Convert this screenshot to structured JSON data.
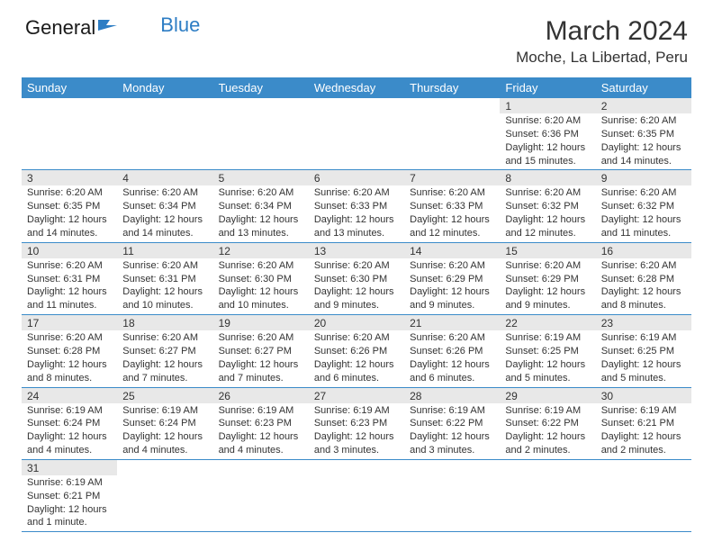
{
  "logo": {
    "text_general": "General",
    "text_blue": "Blue"
  },
  "title": "March 2024",
  "location": "Moche, La Libertad, Peru",
  "colors": {
    "header_bg": "#3b8bc9",
    "header_text": "#ffffff",
    "daynum_bg": "#e8e8e8",
    "border": "#3b8bc9",
    "text": "#333333",
    "logo_blue": "#2d7dc4"
  },
  "weekdays": [
    "Sunday",
    "Monday",
    "Tuesday",
    "Wednesday",
    "Thursday",
    "Friday",
    "Saturday"
  ],
  "weeks": [
    [
      null,
      null,
      null,
      null,
      null,
      {
        "n": "1",
        "sr": "Sunrise: 6:20 AM",
        "ss": "Sunset: 6:36 PM",
        "dl": "Daylight: 12 hours and 15 minutes."
      },
      {
        "n": "2",
        "sr": "Sunrise: 6:20 AM",
        "ss": "Sunset: 6:35 PM",
        "dl": "Daylight: 12 hours and 14 minutes."
      }
    ],
    [
      {
        "n": "3",
        "sr": "Sunrise: 6:20 AM",
        "ss": "Sunset: 6:35 PM",
        "dl": "Daylight: 12 hours and 14 minutes."
      },
      {
        "n": "4",
        "sr": "Sunrise: 6:20 AM",
        "ss": "Sunset: 6:34 PM",
        "dl": "Daylight: 12 hours and 14 minutes."
      },
      {
        "n": "5",
        "sr": "Sunrise: 6:20 AM",
        "ss": "Sunset: 6:34 PM",
        "dl": "Daylight: 12 hours and 13 minutes."
      },
      {
        "n": "6",
        "sr": "Sunrise: 6:20 AM",
        "ss": "Sunset: 6:33 PM",
        "dl": "Daylight: 12 hours and 13 minutes."
      },
      {
        "n": "7",
        "sr": "Sunrise: 6:20 AM",
        "ss": "Sunset: 6:33 PM",
        "dl": "Daylight: 12 hours and 12 minutes."
      },
      {
        "n": "8",
        "sr": "Sunrise: 6:20 AM",
        "ss": "Sunset: 6:32 PM",
        "dl": "Daylight: 12 hours and 12 minutes."
      },
      {
        "n": "9",
        "sr": "Sunrise: 6:20 AM",
        "ss": "Sunset: 6:32 PM",
        "dl": "Daylight: 12 hours and 11 minutes."
      }
    ],
    [
      {
        "n": "10",
        "sr": "Sunrise: 6:20 AM",
        "ss": "Sunset: 6:31 PM",
        "dl": "Daylight: 12 hours and 11 minutes."
      },
      {
        "n": "11",
        "sr": "Sunrise: 6:20 AM",
        "ss": "Sunset: 6:31 PM",
        "dl": "Daylight: 12 hours and 10 minutes."
      },
      {
        "n": "12",
        "sr": "Sunrise: 6:20 AM",
        "ss": "Sunset: 6:30 PM",
        "dl": "Daylight: 12 hours and 10 minutes."
      },
      {
        "n": "13",
        "sr": "Sunrise: 6:20 AM",
        "ss": "Sunset: 6:30 PM",
        "dl": "Daylight: 12 hours and 9 minutes."
      },
      {
        "n": "14",
        "sr": "Sunrise: 6:20 AM",
        "ss": "Sunset: 6:29 PM",
        "dl": "Daylight: 12 hours and 9 minutes."
      },
      {
        "n": "15",
        "sr": "Sunrise: 6:20 AM",
        "ss": "Sunset: 6:29 PM",
        "dl": "Daylight: 12 hours and 9 minutes."
      },
      {
        "n": "16",
        "sr": "Sunrise: 6:20 AM",
        "ss": "Sunset: 6:28 PM",
        "dl": "Daylight: 12 hours and 8 minutes."
      }
    ],
    [
      {
        "n": "17",
        "sr": "Sunrise: 6:20 AM",
        "ss": "Sunset: 6:28 PM",
        "dl": "Daylight: 12 hours and 8 minutes."
      },
      {
        "n": "18",
        "sr": "Sunrise: 6:20 AM",
        "ss": "Sunset: 6:27 PM",
        "dl": "Daylight: 12 hours and 7 minutes."
      },
      {
        "n": "19",
        "sr": "Sunrise: 6:20 AM",
        "ss": "Sunset: 6:27 PM",
        "dl": "Daylight: 12 hours and 7 minutes."
      },
      {
        "n": "20",
        "sr": "Sunrise: 6:20 AM",
        "ss": "Sunset: 6:26 PM",
        "dl": "Daylight: 12 hours and 6 minutes."
      },
      {
        "n": "21",
        "sr": "Sunrise: 6:20 AM",
        "ss": "Sunset: 6:26 PM",
        "dl": "Daylight: 12 hours and 6 minutes."
      },
      {
        "n": "22",
        "sr": "Sunrise: 6:19 AM",
        "ss": "Sunset: 6:25 PM",
        "dl": "Daylight: 12 hours and 5 minutes."
      },
      {
        "n": "23",
        "sr": "Sunrise: 6:19 AM",
        "ss": "Sunset: 6:25 PM",
        "dl": "Daylight: 12 hours and 5 minutes."
      }
    ],
    [
      {
        "n": "24",
        "sr": "Sunrise: 6:19 AM",
        "ss": "Sunset: 6:24 PM",
        "dl": "Daylight: 12 hours and 4 minutes."
      },
      {
        "n": "25",
        "sr": "Sunrise: 6:19 AM",
        "ss": "Sunset: 6:24 PM",
        "dl": "Daylight: 12 hours and 4 minutes."
      },
      {
        "n": "26",
        "sr": "Sunrise: 6:19 AM",
        "ss": "Sunset: 6:23 PM",
        "dl": "Daylight: 12 hours and 4 minutes."
      },
      {
        "n": "27",
        "sr": "Sunrise: 6:19 AM",
        "ss": "Sunset: 6:23 PM",
        "dl": "Daylight: 12 hours and 3 minutes."
      },
      {
        "n": "28",
        "sr": "Sunrise: 6:19 AM",
        "ss": "Sunset: 6:22 PM",
        "dl": "Daylight: 12 hours and 3 minutes."
      },
      {
        "n": "29",
        "sr": "Sunrise: 6:19 AM",
        "ss": "Sunset: 6:22 PM",
        "dl": "Daylight: 12 hours and 2 minutes."
      },
      {
        "n": "30",
        "sr": "Sunrise: 6:19 AM",
        "ss": "Sunset: 6:21 PM",
        "dl": "Daylight: 12 hours and 2 minutes."
      }
    ],
    [
      {
        "n": "31",
        "sr": "Sunrise: 6:19 AM",
        "ss": "Sunset: 6:21 PM",
        "dl": "Daylight: 12 hours and 1 minute."
      },
      null,
      null,
      null,
      null,
      null,
      null
    ]
  ]
}
